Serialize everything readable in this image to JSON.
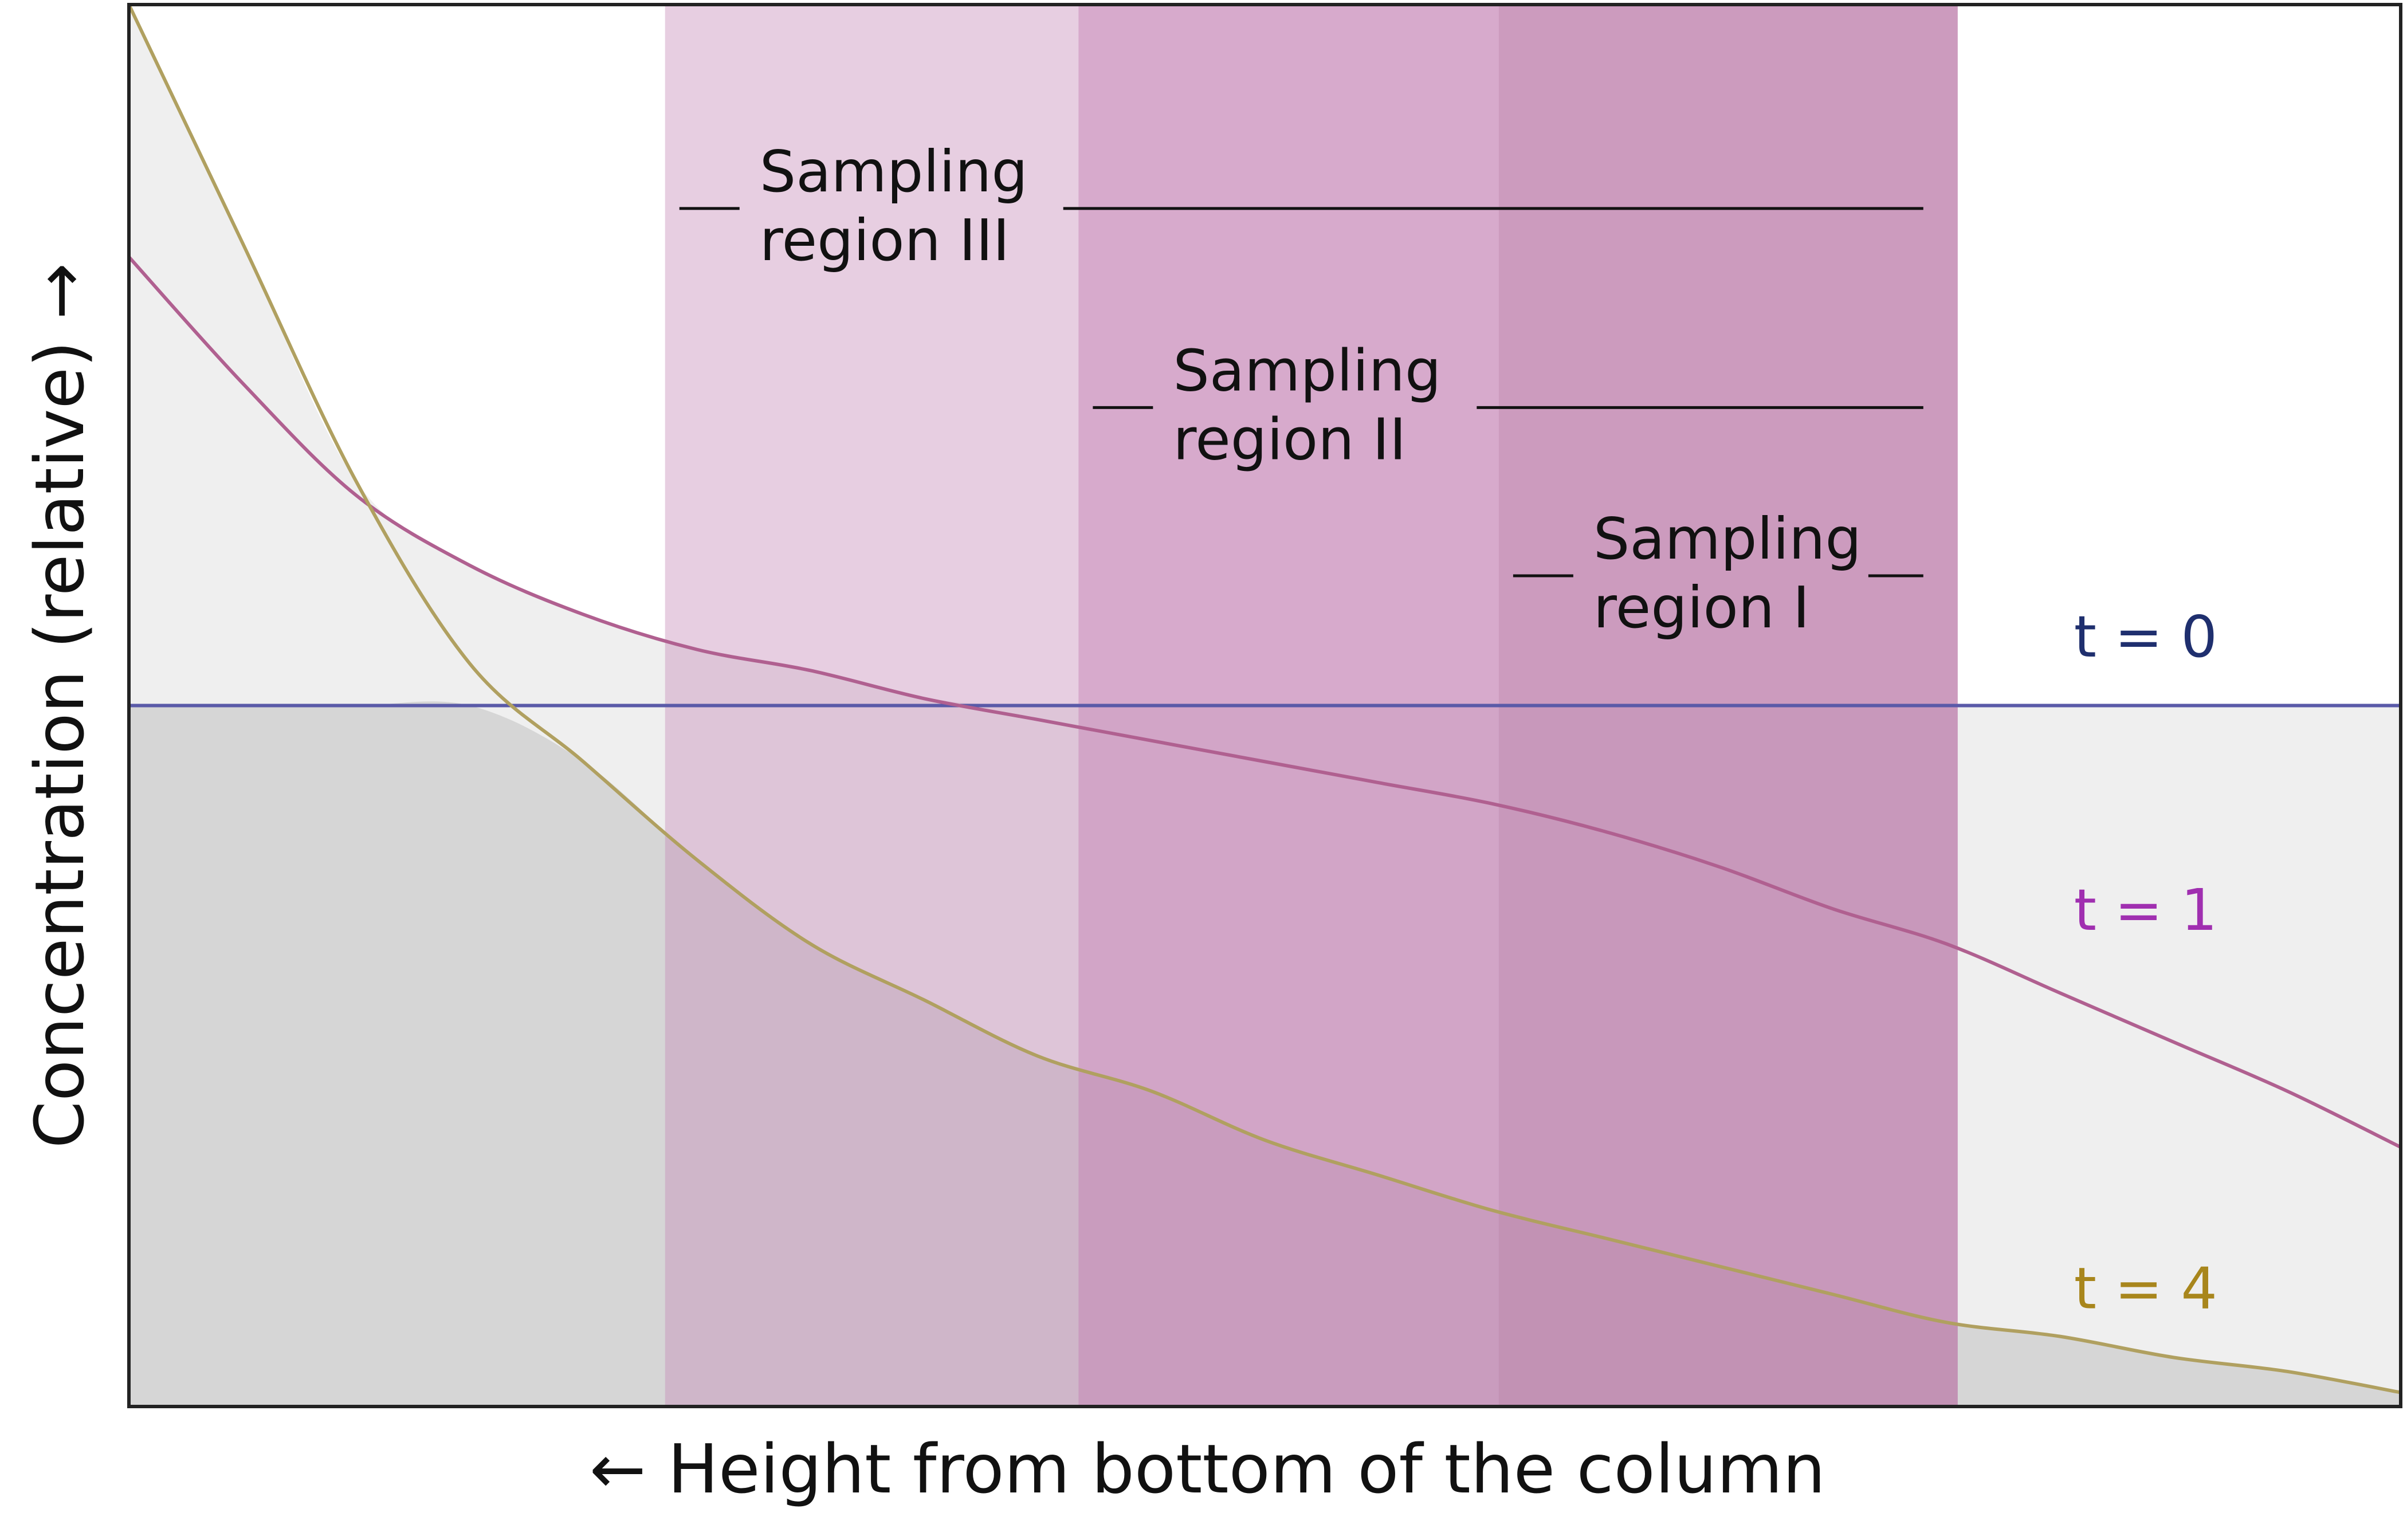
{
  "chart_data": {
    "type": "area",
    "title": "",
    "xlabel": "← Height from bottom of the column",
    "ylabel": "Concentration (relative) →",
    "xlim": [
      0,
      1
    ],
    "ylim": [
      0,
      1
    ],
    "grid": false,
    "x": [
      0.0,
      0.05,
      0.1,
      0.15,
      0.2,
      0.25,
      0.3,
      0.35,
      0.4,
      0.45,
      0.5,
      0.55,
      0.6,
      0.65,
      0.7,
      0.75,
      0.8,
      0.85,
      0.9,
      0.95,
      1.0
    ],
    "series": [
      {
        "name": "t = 0",
        "label": "t = 0",
        "color": "#5a5aa8",
        "labelColor": "#1f2f6e",
        "values": [
          0.5,
          0.5,
          0.5,
          0.5,
          0.5,
          0.5,
          0.5,
          0.5,
          0.5,
          0.5,
          0.5,
          0.5,
          0.5,
          0.5,
          0.5,
          0.5,
          0.5,
          0.5,
          0.5,
          0.5,
          0.5
        ]
      },
      {
        "name": "t = 1",
        "label": "t = 1",
        "color": "#b06090",
        "labelColor": "#a02fb0",
        "values": [
          0.82,
          0.73,
          0.65,
          0.6,
          0.565,
          0.54,
          0.525,
          0.505,
          0.49,
          0.475,
          0.46,
          0.445,
          0.43,
          0.41,
          0.385,
          0.355,
          0.33,
          0.295,
          0.26,
          0.225,
          0.185
        ]
      },
      {
        "name": "t = 4",
        "label": "t = 4",
        "color": "#b0a060",
        "labelColor": "#a8861c",
        "values": [
          1.0,
          0.83,
          0.66,
          0.53,
          0.46,
          0.39,
          0.33,
          0.29,
          0.25,
          0.225,
          0.19,
          0.165,
          0.14,
          0.12,
          0.1,
          0.08,
          0.06,
          0.05,
          0.035,
          0.025,
          0.01
        ]
      }
    ],
    "regions": [
      {
        "name": "III",
        "label_line1": "Sampling",
        "label_line2": "region III",
        "x_start": 0.236,
        "x_end": 0.805,
        "color": "#c68ab8",
        "opacity": 0.42,
        "leader_y": 0.875
      },
      {
        "name": "II",
        "label_line1": "Sampling",
        "label_line2": "region II",
        "x_start": 0.418,
        "x_end": 0.805,
        "color": "#c07ab0",
        "opacity": 0.42,
        "leader_y": 0.733
      },
      {
        "name": "I",
        "label_line1": "Sampling",
        "label_line2": "region I",
        "x_start": 0.603,
        "x_end": 0.805,
        "color": "#b47aa0",
        "opacity": 0.3,
        "leader_y": 0.613
      }
    ]
  }
}
